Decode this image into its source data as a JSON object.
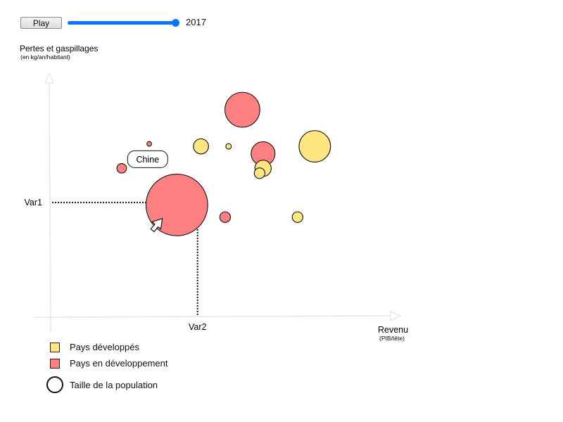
{
  "controls": {
    "play_label": "Play",
    "year": "2017",
    "slider_fraction": 1.0
  },
  "colors": {
    "developed": "#ffe680",
    "developing": "#ff8080",
    "slider": "#0a75ff"
  },
  "chart_data": {
    "type": "scatter",
    "ylabel": "Pertes et gaspillages",
    "ylabel_sub": "(en kg/an/habitant)",
    "xlabel": "Revenu",
    "xlabel_sub": "(PIB/tête)",
    "x_ticks": [
      {
        "value": 0.43,
        "label": "Var2"
      }
    ],
    "y_ticks": [
      {
        "value": 0.47,
        "label": "Var1"
      }
    ],
    "xlim": [
      0,
      1
    ],
    "ylim": [
      0,
      1
    ],
    "grid": false,
    "annotation": {
      "text": "Chine",
      "target": "developing-0"
    },
    "series": [
      {
        "name": "Pays développés",
        "color_key": "developed",
        "points": [
          {
            "x": 0.44,
            "y": 0.7,
            "size": 3
          },
          {
            "x": 0.52,
            "y": 0.7,
            "size": 0.4
          },
          {
            "x": 0.61,
            "y": 0.59,
            "size": 1.5
          },
          {
            "x": 0.62,
            "y": 0.61,
            "size": 3.5
          },
          {
            "x": 0.72,
            "y": 0.41,
            "size": 1.5
          },
          {
            "x": 0.77,
            "y": 0.7,
            "size": 13
          }
        ]
      },
      {
        "name": "Pays en développement",
        "color_key": "developing",
        "points": [
          {
            "x": 0.37,
            "y": 0.46,
            "size": 50
          },
          {
            "x": 0.21,
            "y": 0.61,
            "size": 1.2
          },
          {
            "x": 0.29,
            "y": 0.71,
            "size": 0.3
          },
          {
            "x": 0.51,
            "y": 0.41,
            "size": 1.5
          },
          {
            "x": 0.56,
            "y": 0.85,
            "size": 16
          },
          {
            "x": 0.62,
            "y": 0.67,
            "size": 7.5
          }
        ]
      }
    ],
    "size_legend": "Taille de la population"
  }
}
